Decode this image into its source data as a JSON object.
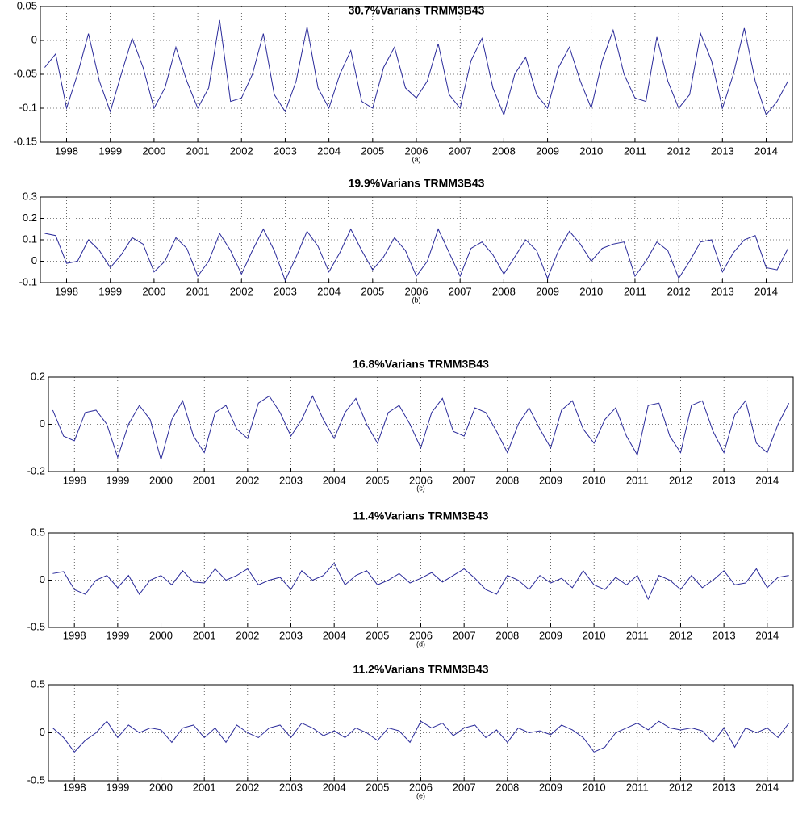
{
  "chart_data": [
    {
      "type": "line",
      "title": "30.7%Varians TRMM3B43",
      "caption": "(a)",
      "color": "#2a2a9a",
      "grid": true,
      "x": [
        1997.5,
        1997.75,
        1998,
        1998.25,
        1998.5,
        1998.75,
        1999,
        1999.25,
        1999.5,
        1999.75,
        2000,
        2000.25,
        2000.5,
        2000.75,
        2001,
        2001.25,
        2001.5,
        2001.75,
        2002,
        2002.25,
        2002.5,
        2002.75,
        2003,
        2003.25,
        2003.5,
        2003.75,
        2004,
        2004.25,
        2004.5,
        2004.75,
        2005,
        2005.25,
        2005.5,
        2005.75,
        2006,
        2006.25,
        2006.5,
        2006.75,
        2007,
        2007.25,
        2007.5,
        2007.75,
        2008,
        2008.25,
        2008.5,
        2008.75,
        2009,
        2009.25,
        2009.5,
        2009.75,
        2010,
        2010.25,
        2010.5,
        2010.75,
        2011,
        2011.25,
        2011.5,
        2011.75,
        2012,
        2012.25,
        2012.5,
        2012.75,
        2013,
        2013.25,
        2013.5,
        2013.75,
        2014,
        2014.25,
        2014.5
      ],
      "values": [
        -0.04,
        -0.02,
        -0.1,
        -0.05,
        0.01,
        -0.06,
        -0.105,
        -0.05,
        0.003,
        -0.04,
        -0.1,
        -0.07,
        -0.01,
        -0.06,
        -0.1,
        -0.07,
        0.03,
        -0.09,
        -0.085,
        -0.05,
        0.01,
        -0.08,
        -0.105,
        -0.06,
        0.02,
        -0.07,
        -0.1,
        -0.05,
        -0.015,
        -0.09,
        -0.1,
        -0.04,
        -0.01,
        -0.07,
        -0.085,
        -0.06,
        -0.005,
        -0.08,
        -0.1,
        -0.03,
        0.003,
        -0.07,
        -0.11,
        -0.05,
        -0.025,
        -0.08,
        -0.1,
        -0.04,
        -0.01,
        -0.06,
        -0.1,
        -0.03,
        0.015,
        -0.05,
        -0.085,
        -0.09,
        0.005,
        -0.06,
        -0.1,
        -0.08,
        0.01,
        -0.03,
        -0.1,
        -0.05,
        0.018,
        -0.06,
        -0.11,
        -0.09,
        -0.06
      ],
      "xlim": [
        1997.4,
        2014.6
      ],
      "xticks": [
        1998,
        1999,
        2000,
        2001,
        2002,
        2003,
        2004,
        2005,
        2006,
        2007,
        2008,
        2009,
        2010,
        2011,
        2012,
        2013,
        2014
      ],
      "ylim": [
        -0.15,
        0.05
      ],
      "yticks": [
        -0.15,
        -0.1,
        -0.05,
        0,
        0.05
      ]
    },
    {
      "type": "line",
      "title": "19.9%Varians TRMM3B43",
      "caption": "(b)",
      "color": "#2a2a9a",
      "grid": true,
      "x": [
        1997.5,
        1997.75,
        1998,
        1998.25,
        1998.5,
        1998.75,
        1999,
        1999.25,
        1999.5,
        1999.75,
        2000,
        2000.25,
        2000.5,
        2000.75,
        2001,
        2001.25,
        2001.5,
        2001.75,
        2002,
        2002.25,
        2002.5,
        2002.75,
        2003,
        2003.25,
        2003.5,
        2003.75,
        2004,
        2004.25,
        2004.5,
        2004.75,
        2005,
        2005.25,
        2005.5,
        2005.75,
        2006,
        2006.25,
        2006.5,
        2006.75,
        2007,
        2007.25,
        2007.5,
        2007.75,
        2008,
        2008.25,
        2008.5,
        2008.75,
        2009,
        2009.25,
        2009.5,
        2009.75,
        2010,
        2010.25,
        2010.5,
        2010.75,
        2011,
        2011.25,
        2011.5,
        2011.75,
        2012,
        2012.25,
        2012.5,
        2012.75,
        2013,
        2013.25,
        2013.5,
        2013.75,
        2014,
        2014.25,
        2014.5
      ],
      "values": [
        0.13,
        0.12,
        -0.01,
        0.0,
        0.1,
        0.05,
        -0.03,
        0.03,
        0.11,
        0.08,
        -0.05,
        0.0,
        0.11,
        0.06,
        -0.07,
        0.0,
        0.13,
        0.05,
        -0.06,
        0.05,
        0.15,
        0.05,
        -0.09,
        0.02,
        0.14,
        0.07,
        -0.05,
        0.04,
        0.15,
        0.05,
        -0.04,
        0.02,
        0.11,
        0.05,
        -0.07,
        0.0,
        0.15,
        0.04,
        -0.07,
        0.06,
        0.09,
        0.03,
        -0.06,
        0.02,
        0.1,
        0.05,
        -0.08,
        0.05,
        0.14,
        0.08,
        0.0,
        0.06,
        0.08,
        0.09,
        -0.07,
        0.0,
        0.09,
        0.05,
        -0.08,
        0.0,
        0.09,
        0.1,
        -0.05,
        0.04,
        0.1,
        0.12,
        -0.03,
        -0.04,
        0.06
      ],
      "xlim": [
        1997.4,
        2014.6
      ],
      "xticks": [
        1998,
        1999,
        2000,
        2001,
        2002,
        2003,
        2004,
        2005,
        2006,
        2007,
        2008,
        2009,
        2010,
        2011,
        2012,
        2013,
        2014
      ],
      "ylim": [
        -0.1,
        0.3
      ],
      "yticks": [
        -0.1,
        0,
        0.1,
        0.2,
        0.3
      ]
    },
    {
      "type": "line",
      "title": "16.8%Varians TRMM3B43",
      "caption": "(c)",
      "color": "#2a2a9a",
      "grid": true,
      "x": [
        1997.5,
        1997.75,
        1998,
        1998.25,
        1998.5,
        1998.75,
        1999,
        1999.25,
        1999.5,
        1999.75,
        2000,
        2000.25,
        2000.5,
        2000.75,
        2001,
        2001.25,
        2001.5,
        2001.75,
        2002,
        2002.25,
        2002.5,
        2002.75,
        2003,
        2003.25,
        2003.5,
        2003.75,
        2004,
        2004.25,
        2004.5,
        2004.75,
        2005,
        2005.25,
        2005.5,
        2005.75,
        2006,
        2006.25,
        2006.5,
        2006.75,
        2007,
        2007.25,
        2007.5,
        2007.75,
        2008,
        2008.25,
        2008.5,
        2008.75,
        2009,
        2009.25,
        2009.5,
        2009.75,
        2010,
        2010.25,
        2010.5,
        2010.75,
        2011,
        2011.25,
        2011.5,
        2011.75,
        2012,
        2012.25,
        2012.5,
        2012.75,
        2013,
        2013.25,
        2013.5,
        2013.75,
        2014,
        2014.25,
        2014.5
      ],
      "values": [
        0.06,
        -0.05,
        -0.07,
        0.05,
        0.06,
        0.0,
        -0.14,
        0.0,
        0.08,
        0.02,
        -0.15,
        0.02,
        0.1,
        -0.05,
        -0.12,
        0.05,
        0.08,
        -0.02,
        -0.06,
        0.09,
        0.12,
        0.05,
        -0.05,
        0.02,
        0.12,
        0.02,
        -0.06,
        0.05,
        0.11,
        0.0,
        -0.08,
        0.05,
        0.08,
        0.0,
        -0.1,
        0.05,
        0.11,
        -0.03,
        -0.05,
        0.07,
        0.05,
        -0.03,
        -0.12,
        0.0,
        0.07,
        -0.02,
        -0.1,
        0.06,
        0.1,
        -0.02,
        -0.08,
        0.02,
        0.07,
        -0.05,
        -0.13,
        0.08,
        0.09,
        -0.05,
        -0.12,
        0.08,
        0.1,
        -0.03,
        -0.12,
        0.04,
        0.1,
        -0.08,
        -0.12,
        0.0,
        0.09
      ],
      "xlim": [
        1997.4,
        2014.6
      ],
      "xticks": [
        1998,
        1999,
        2000,
        2001,
        2002,
        2003,
        2004,
        2005,
        2006,
        2007,
        2008,
        2009,
        2010,
        2011,
        2012,
        2013,
        2014
      ],
      "ylim": [
        -0.2,
        0.2
      ],
      "yticks": [
        -0.2,
        0,
        0.2
      ]
    },
    {
      "type": "line",
      "title": "11.4%Varians TRMM3B43",
      "caption": "(d)",
      "color": "#2a2a9a",
      "grid": true,
      "x": [
        1997.5,
        1997.75,
        1998,
        1998.25,
        1998.5,
        1998.75,
        1999,
        1999.25,
        1999.5,
        1999.75,
        2000,
        2000.25,
        2000.5,
        2000.75,
        2001,
        2001.25,
        2001.5,
        2001.75,
        2002,
        2002.25,
        2002.5,
        2002.75,
        2003,
        2003.25,
        2003.5,
        2003.75,
        2004,
        2004.25,
        2004.5,
        2004.75,
        2005,
        2005.25,
        2005.5,
        2005.75,
        2006,
        2006.25,
        2006.5,
        2006.75,
        2007,
        2007.25,
        2007.5,
        2007.75,
        2008,
        2008.25,
        2008.5,
        2008.75,
        2009,
        2009.25,
        2009.5,
        2009.75,
        2010,
        2010.25,
        2010.5,
        2010.75,
        2011,
        2011.25,
        2011.5,
        2011.75,
        2012,
        2012.25,
        2012.5,
        2012.75,
        2013,
        2013.25,
        2013.5,
        2013.75,
        2014,
        2014.25,
        2014.5
      ],
      "values": [
        0.07,
        0.09,
        -0.1,
        -0.15,
        0.0,
        0.05,
        -0.08,
        0.05,
        -0.15,
        0.0,
        0.05,
        -0.05,
        0.1,
        -0.02,
        -0.03,
        0.12,
        0.0,
        0.05,
        0.12,
        -0.05,
        0.0,
        0.03,
        -0.1,
        0.1,
        0.0,
        0.05,
        0.18,
        -0.05,
        0.05,
        0.1,
        -0.05,
        0.0,
        0.07,
        -0.03,
        0.02,
        0.08,
        -0.02,
        0.05,
        0.12,
        0.02,
        -0.1,
        -0.15,
        0.05,
        0.0,
        -0.1,
        0.05,
        -0.03,
        0.02,
        -0.08,
        0.1,
        -0.05,
        -0.1,
        0.03,
        -0.05,
        0.05,
        -0.2,
        0.05,
        0.0,
        -0.1,
        0.05,
        -0.08,
        0.0,
        0.1,
        -0.05,
        -0.03,
        0.12,
        -0.08,
        0.03,
        0.05
      ],
      "xlim": [
        1997.4,
        2014.6
      ],
      "xticks": [
        1998,
        1999,
        2000,
        2001,
        2002,
        2003,
        2004,
        2005,
        2006,
        2007,
        2008,
        2009,
        2010,
        2011,
        2012,
        2013,
        2014
      ],
      "ylim": [
        -0.5,
        0.5
      ],
      "yticks": [
        -0.5,
        0,
        0.5
      ]
    },
    {
      "type": "line",
      "title": "11.2%Varians TRMM3B43",
      "caption": "(e)",
      "color": "#2a2a9a",
      "grid": true,
      "x": [
        1997.5,
        1997.75,
        1998,
        1998.25,
        1998.5,
        1998.75,
        1999,
        1999.25,
        1999.5,
        1999.75,
        2000,
        2000.25,
        2000.5,
        2000.75,
        2001,
        2001.25,
        2001.5,
        2001.75,
        2002,
        2002.25,
        2002.5,
        2002.75,
        2003,
        2003.25,
        2003.5,
        2003.75,
        2004,
        2004.25,
        2004.5,
        2004.75,
        2005,
        2005.25,
        2005.5,
        2005.75,
        2006,
        2006.25,
        2006.5,
        2006.75,
        2007,
        2007.25,
        2007.5,
        2007.75,
        2008,
        2008.25,
        2008.5,
        2008.75,
        2009,
        2009.25,
        2009.5,
        2009.75,
        2010,
        2010.25,
        2010.5,
        2010.75,
        2011,
        2011.25,
        2011.5,
        2011.75,
        2012,
        2012.25,
        2012.5,
        2012.75,
        2013,
        2013.25,
        2013.5,
        2013.75,
        2014,
        2014.25,
        2014.5
      ],
      "values": [
        0.05,
        -0.05,
        -0.2,
        -0.08,
        0.0,
        0.12,
        -0.05,
        0.08,
        0.0,
        0.05,
        0.03,
        -0.1,
        0.05,
        0.08,
        -0.05,
        0.05,
        -0.1,
        0.08,
        0.0,
        -0.05,
        0.05,
        0.08,
        -0.05,
        0.1,
        0.05,
        -0.03,
        0.02,
        -0.05,
        0.05,
        0.0,
        -0.08,
        0.05,
        0.02,
        -0.1,
        0.12,
        0.05,
        0.1,
        -0.03,
        0.05,
        0.08,
        -0.05,
        0.03,
        -0.1,
        0.05,
        0.0,
        0.02,
        -0.02,
        0.08,
        0.03,
        -0.05,
        -0.2,
        -0.15,
        0.0,
        0.05,
        0.1,
        0.03,
        0.12,
        0.05,
        0.03,
        0.05,
        0.02,
        -0.1,
        0.05,
        -0.15,
        0.05,
        0.0,
        0.05,
        -0.05,
        0.1
      ],
      "xlim": [
        1997.4,
        2014.6
      ],
      "xticks": [
        1998,
        1999,
        2000,
        2001,
        2002,
        2003,
        2004,
        2005,
        2006,
        2007,
        2008,
        2009,
        2010,
        2011,
        2012,
        2013,
        2014
      ],
      "ylim": [
        -0.5,
        0.5
      ],
      "yticks": [
        -0.5,
        0,
        0.5
      ]
    }
  ]
}
